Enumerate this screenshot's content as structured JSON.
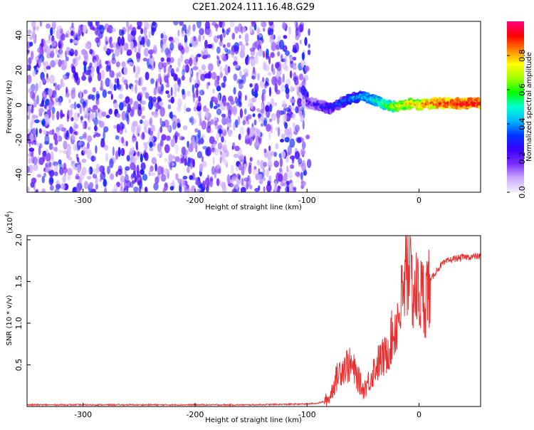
{
  "title": "C2E1.2024.111.16.48.G29",
  "chart_data": [
    {
      "type": "heatmap",
      "xlabel": "Height of straight line (km)",
      "ylabel": "Frequency (Hz)",
      "xlim": [
        -350,
        55
      ],
      "ylim": [
        -50,
        48
      ],
      "xticks": [
        -300,
        -200,
        -100,
        0
      ],
      "yticks": [
        -40,
        -20,
        0,
        20,
        40
      ],
      "colorbar": {
        "label": "Normalized spectral amplitude",
        "range": [
          0,
          1
        ],
        "ticks": [
          "0.0",
          "0.2",
          "0.4",
          "0.6",
          "0.8"
        ],
        "colors": [
          "#f4f0ff",
          "#c9a8ff",
          "#7a2cff",
          "#3a00ff",
          "#0033ff",
          "#00b7ff",
          "#00ffd0",
          "#00ff00",
          "#a0ff00",
          "#ffff00",
          "#ff8000",
          "#ff0000",
          "#ff0080"
        ]
      },
      "features": {
        "noise_region_x": [
          -350,
          -98
        ],
        "signal_track": {
          "x": [
            -100,
            -90,
            -80,
            -70,
            -60,
            -50,
            -40,
            -30,
            -20,
            -10,
            0,
            10,
            20,
            30,
            40,
            55
          ],
          "freq": [
            2,
            0,
            -2,
            1,
            4,
            5,
            3,
            0,
            -1,
            1,
            0,
            1,
            1,
            1,
            1,
            1
          ],
          "amplitude": [
            0.2,
            0.25,
            0.3,
            0.35,
            0.4,
            0.45,
            0.5,
            0.6,
            0.7,
            0.75,
            0.8,
            0.85,
            0.9,
            0.92,
            0.95,
            0.95
          ]
        }
      }
    },
    {
      "type": "line",
      "xlabel": "Height of straight line (km)",
      "ylabel": "SNR (10 * v/v)",
      "y_multiplier": "(x10",
      "y_multiplier_exp": "4",
      "y_multiplier_close": ")",
      "xlim": [
        -350,
        55
      ],
      "ylim": [
        0,
        2.05
      ],
      "xticks": [
        -300,
        -200,
        -100,
        0
      ],
      "yticks": [
        "0.5",
        "1.0",
        "1.5",
        "2.0"
      ],
      "series": [
        {
          "color": "#e83030",
          "x": [
            -350,
            -300,
            -250,
            -200,
            -150,
            -100,
            -90,
            -85,
            -80,
            -75,
            -70,
            -65,
            -60,
            -55,
            -50,
            -45,
            -40,
            -35,
            -30,
            -25,
            -20,
            -15,
            -10,
            -5,
            0,
            5,
            10,
            15,
            20,
            25,
            30,
            40,
            50,
            55
          ],
          "y": [
            0.02,
            0.02,
            0.02,
            0.02,
            0.02,
            0.03,
            0.04,
            0.06,
            0.1,
            0.3,
            0.45,
            0.5,
            0.48,
            0.35,
            0.2,
            0.3,
            0.45,
            0.55,
            0.6,
            0.8,
            1.0,
            1.3,
            1.5,
            1.4,
            1.35,
            1.3,
            1.5,
            1.62,
            1.7,
            1.74,
            1.77,
            1.79,
            1.8,
            1.8
          ]
        }
      ]
    }
  ]
}
